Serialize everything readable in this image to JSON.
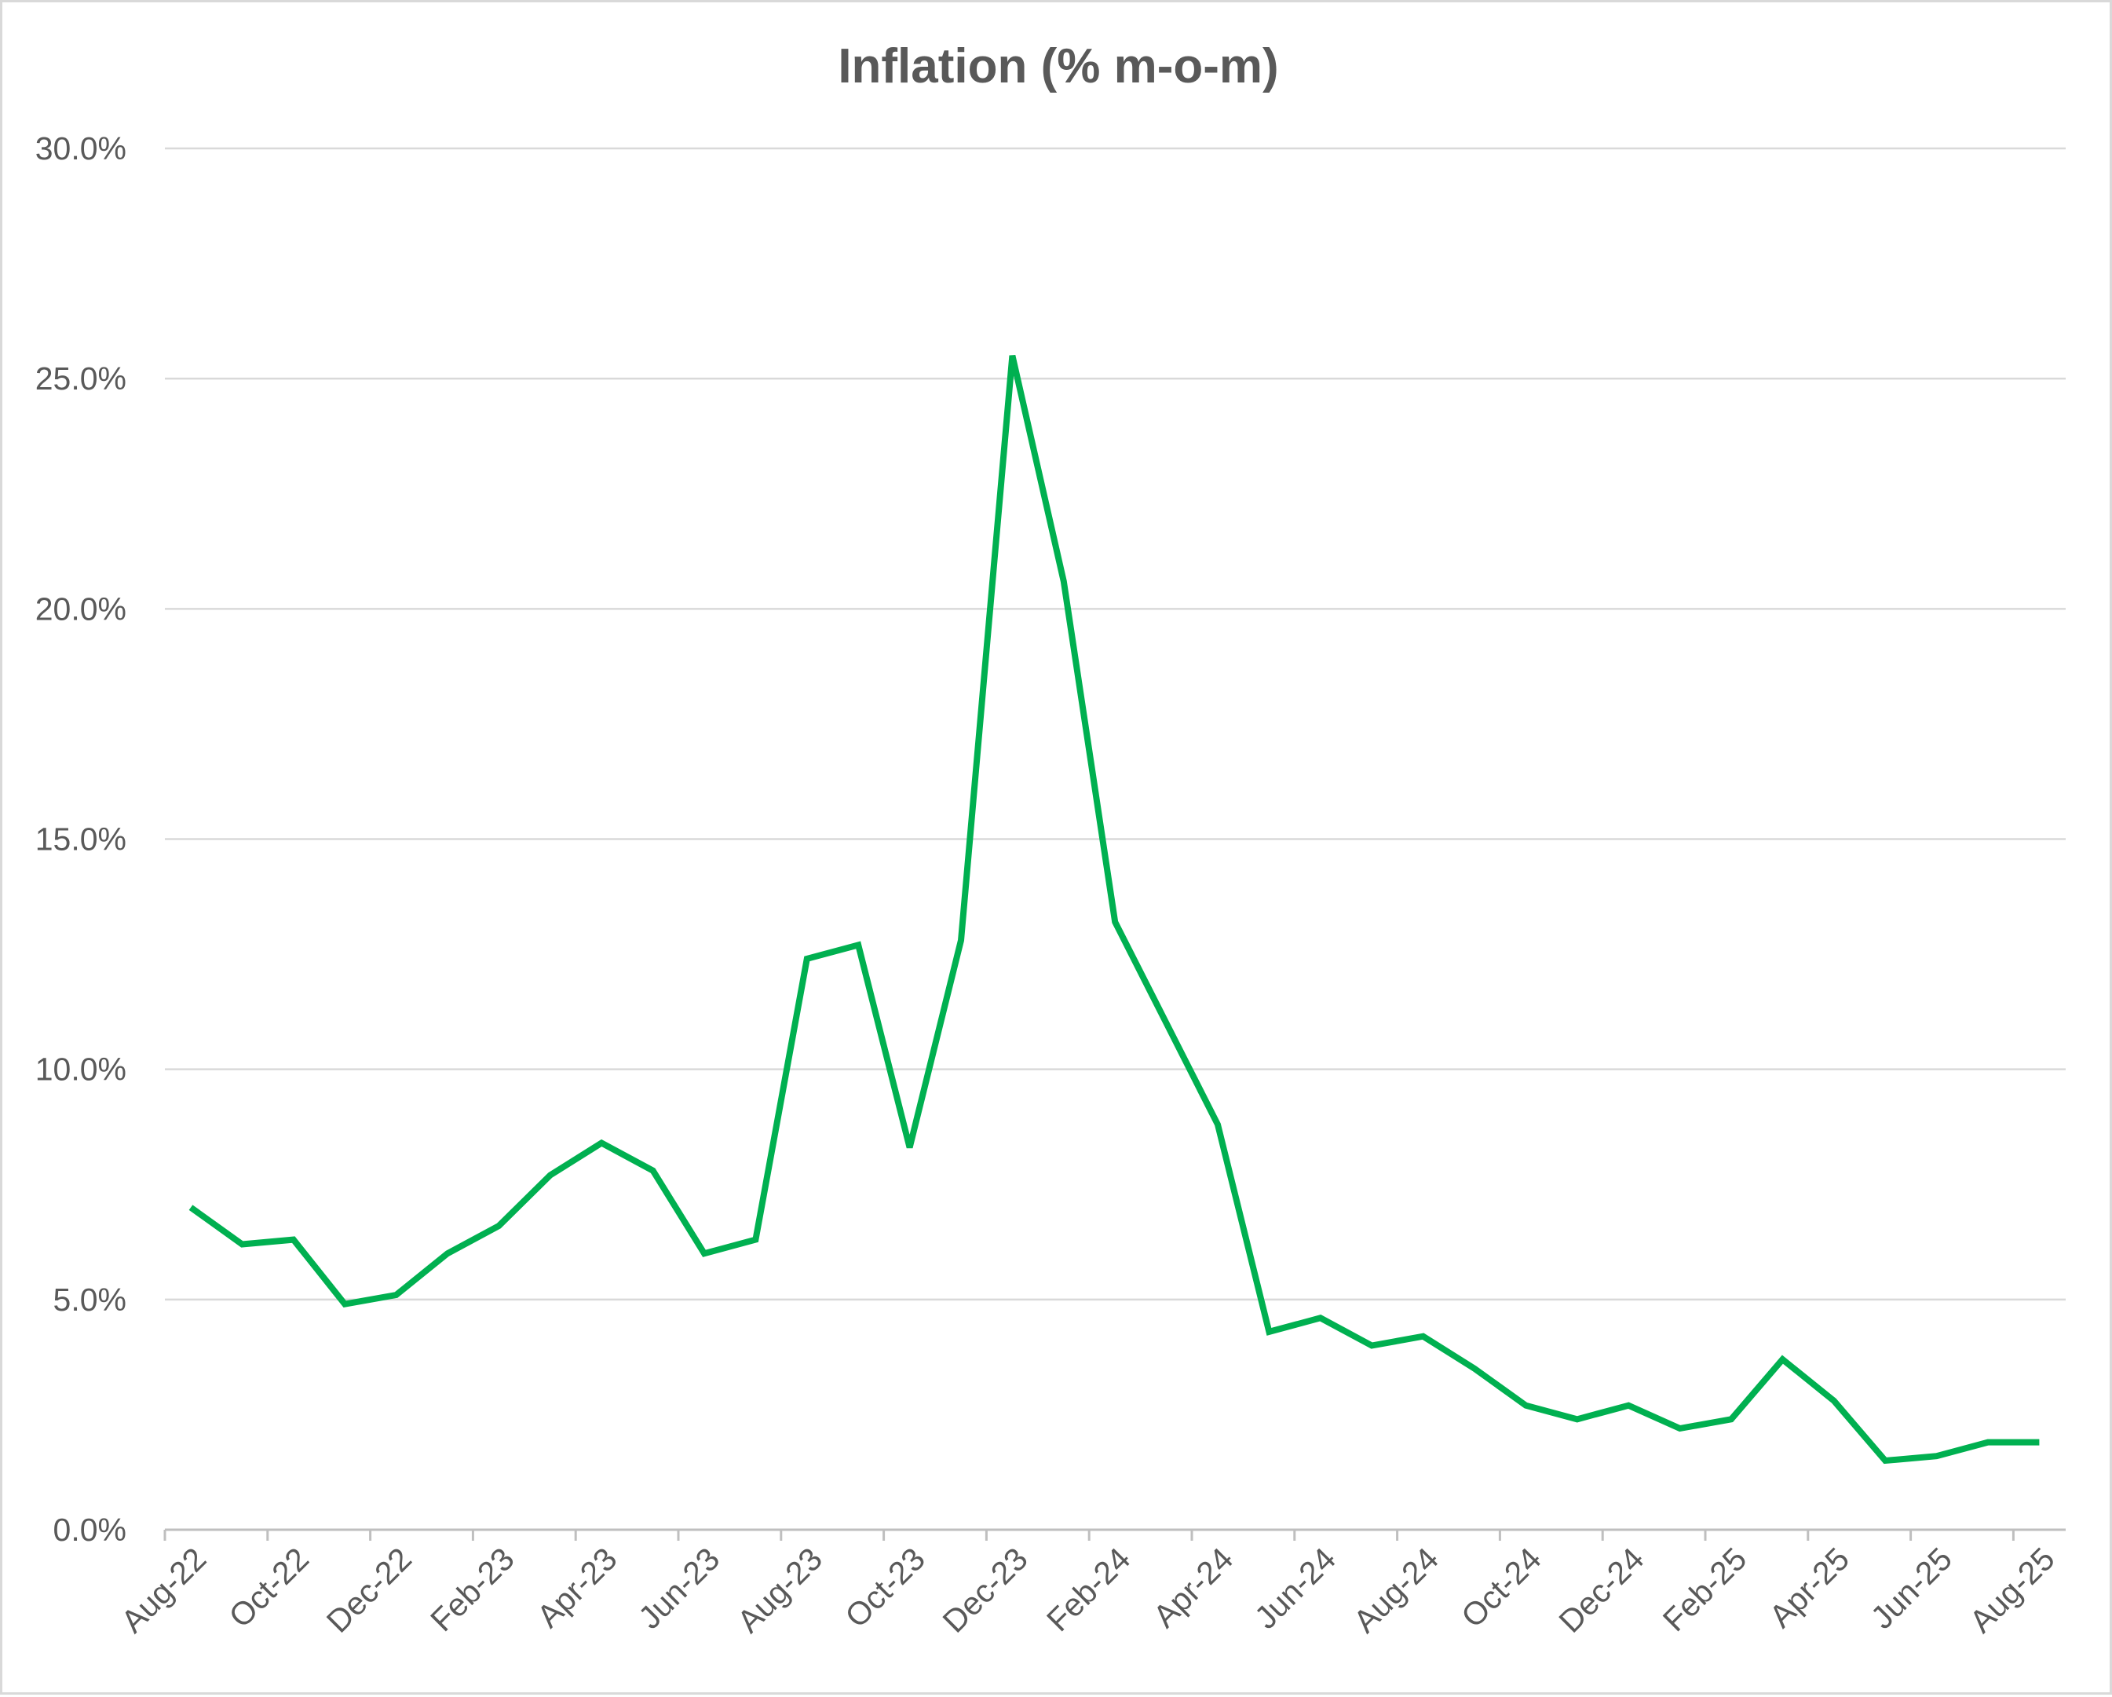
{
  "chart_data": {
    "type": "line",
    "title": "Inflation (% m-o-m)",
    "xlabel": "",
    "ylabel": "",
    "ylim": [
      0,
      30
    ],
    "y_ticks": [
      "0.0%",
      "5.0%",
      "10.0%",
      "15.0%",
      "20.0%",
      "25.0%",
      "30.0%"
    ],
    "y_tick_values": [
      0,
      5,
      10,
      15,
      20,
      25,
      30
    ],
    "grid": true,
    "legend": "none",
    "x_tick_labels": [
      "Aug-22",
      "Oct-22",
      "Dec-22",
      "Feb-23",
      "Apr-23",
      "Jun-23",
      "Aug-23",
      "Oct-23",
      "Dec-23",
      "Feb-24",
      "Apr-24",
      "Jun-24",
      "Aug-24",
      "Oct-24",
      "Dec-24",
      "Feb-25",
      "Apr-25",
      "Jun-25",
      "Aug-25"
    ],
    "x": [
      "Aug-22",
      "Sep-22",
      "Oct-22",
      "Nov-22",
      "Dec-22",
      "Jan-23",
      "Feb-23",
      "Mar-23",
      "Apr-23",
      "May-23",
      "Jun-23",
      "Jul-23",
      "Aug-23",
      "Sep-23",
      "Oct-23",
      "Nov-23",
      "Dec-23",
      "Jan-24",
      "Feb-24",
      "Mar-24",
      "Apr-24",
      "May-24",
      "Jun-24",
      "Jul-24",
      "Aug-24",
      "Sep-24",
      "Oct-24",
      "Nov-24",
      "Dec-24",
      "Jan-25",
      "Feb-25",
      "Mar-25",
      "Apr-25",
      "May-25",
      "Jun-25",
      "Jul-25",
      "Aug-25"
    ],
    "series": [
      {
        "values": [
          7.0,
          6.2,
          6.3,
          4.9,
          5.1,
          6.0,
          6.6,
          7.7,
          8.4,
          7.8,
          6.0,
          6.3,
          12.4,
          12.7,
          8.3,
          12.8,
          25.5,
          20.6,
          13.2,
          11.0,
          8.8,
          4.3,
          4.6,
          4.0,
          4.2,
          3.5,
          2.7,
          2.4,
          2.7,
          2.2,
          2.4,
          3.7,
          2.8,
          1.5,
          1.6,
          1.9,
          1.9
        ],
        "color": "#00b050"
      }
    ]
  }
}
